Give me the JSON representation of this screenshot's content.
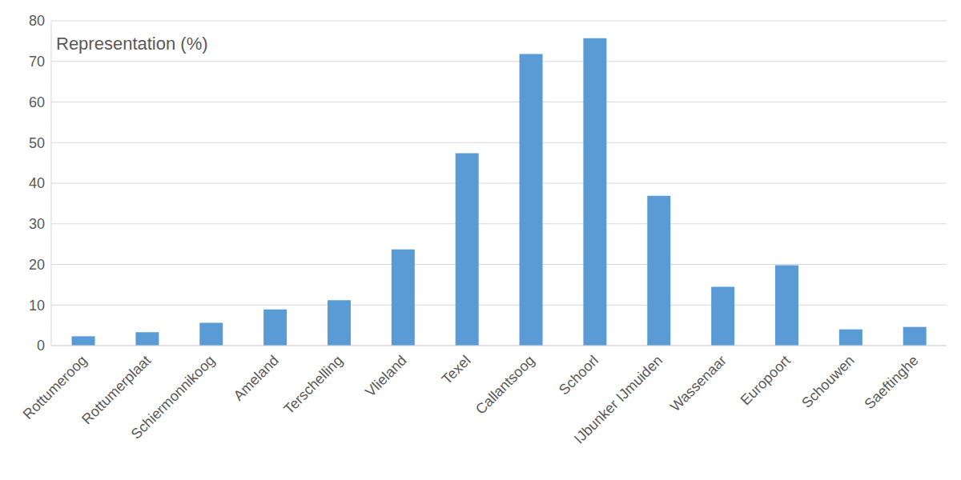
{
  "chart_data": {
    "type": "bar",
    "title": "Representation (%)",
    "categories": [
      "Rottumeroog",
      "Rottumerplaat",
      "Schiermonnikoog",
      "Ameland",
      "Terschelling",
      "Vlieland",
      "Texel",
      "Callantsoog",
      "Schoorl",
      "IJbunker IJmuiden",
      "Wassenaar",
      "Europoort",
      "Schouwen",
      "Saeftinghe"
    ],
    "values": [
      2.3,
      3.3,
      5.6,
      8.9,
      11.2,
      23.7,
      47.4,
      71.8,
      75.7,
      36.9,
      14.5,
      19.8,
      4.0,
      4.6
    ],
    "color": "#5b9bd5",
    "ylim": [
      0,
      80
    ],
    "yticks": [
      0,
      10,
      20,
      30,
      40,
      50,
      60,
      70,
      80
    ],
    "grid": true
  }
}
